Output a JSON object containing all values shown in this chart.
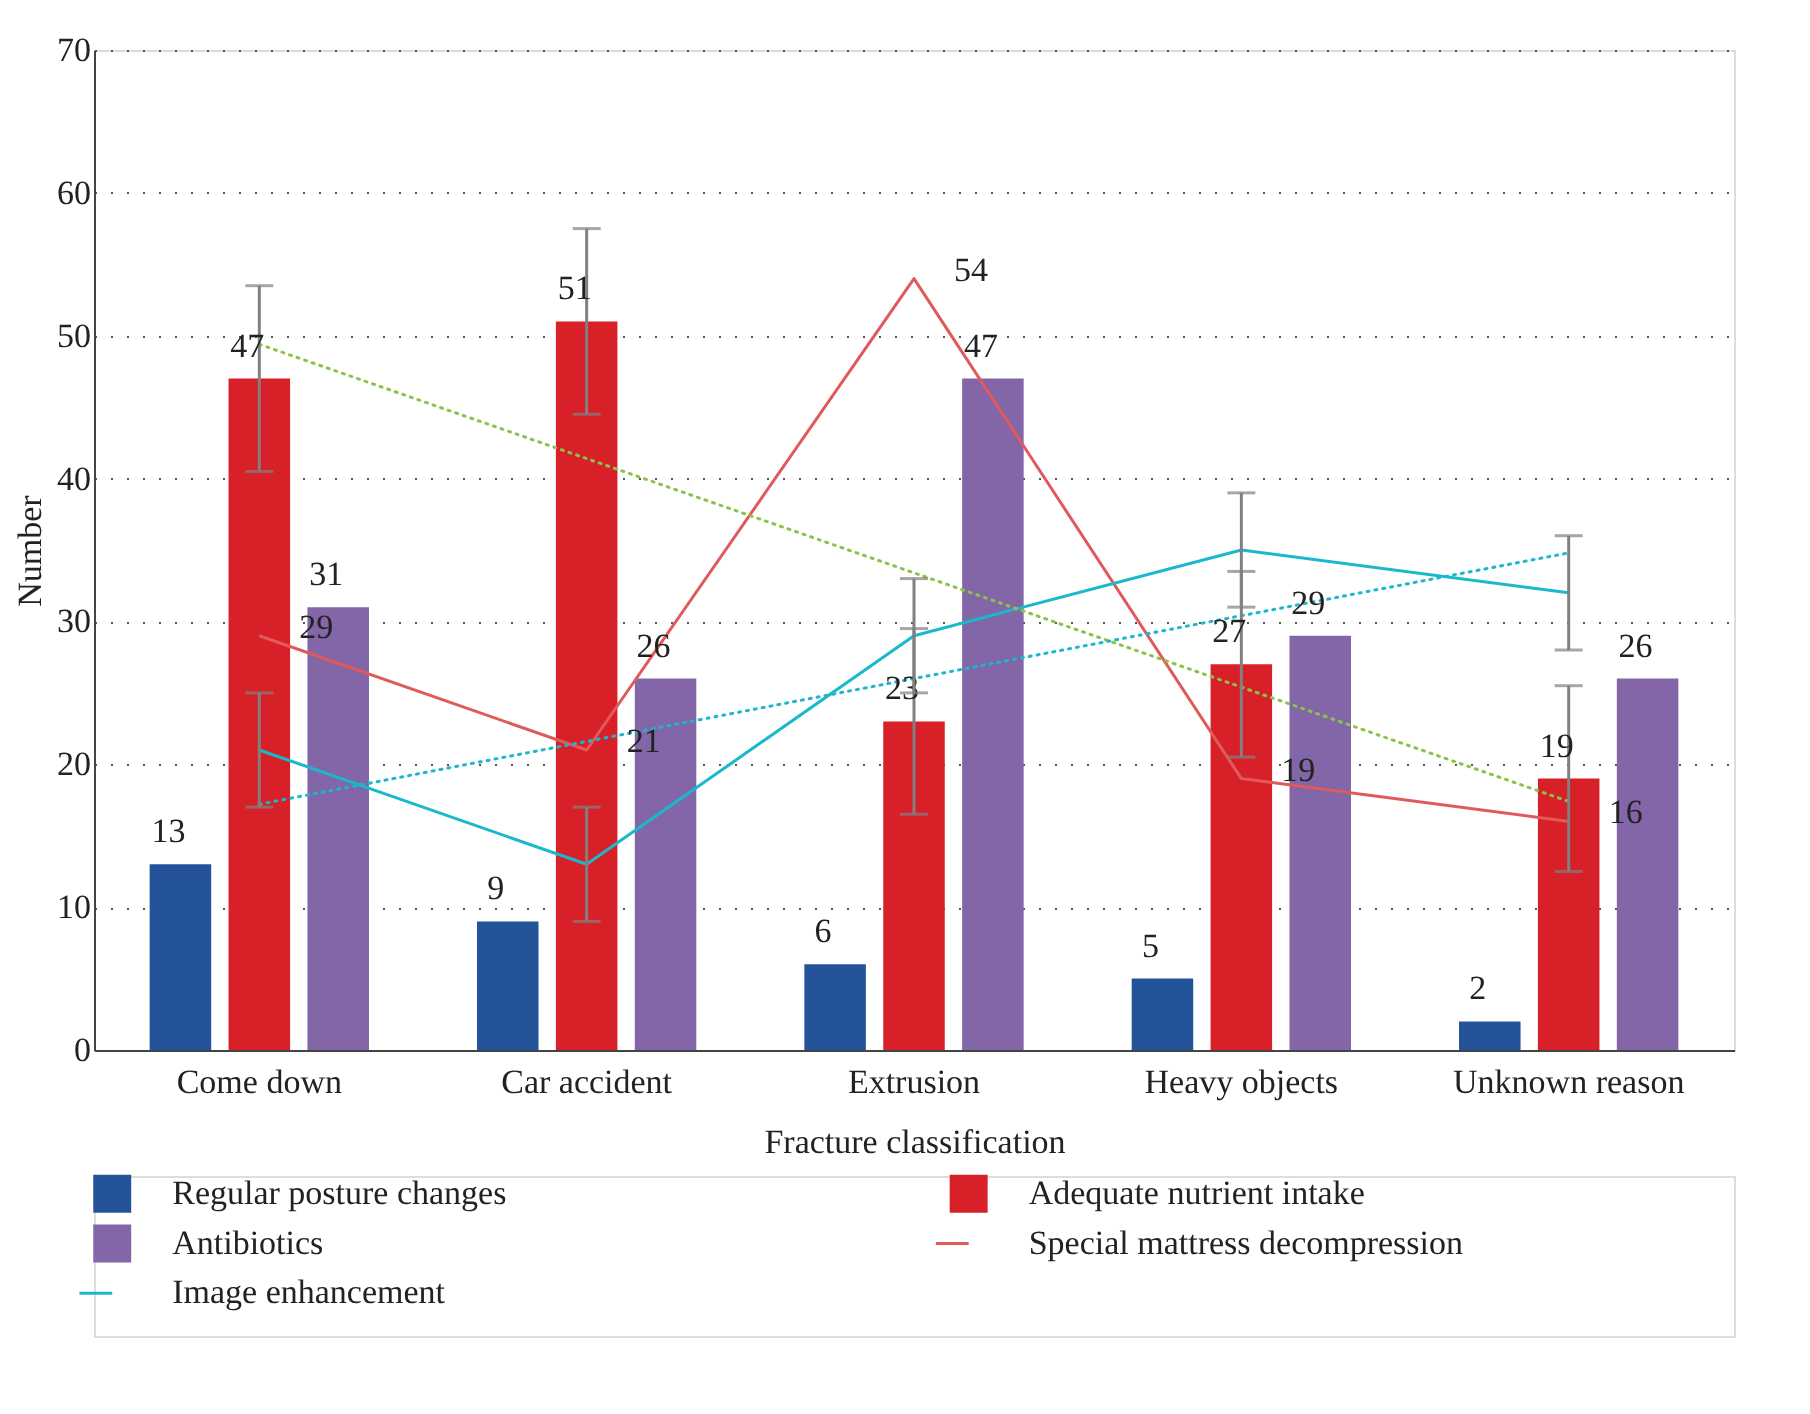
{
  "chart_data": {
    "type": "bar",
    "xlabel": "Fracture classification",
    "ylabel": "Number",
    "categories": [
      "Come down",
      "Car accident",
      "Extrusion",
      "Heavy objects",
      "Unknown reason"
    ],
    "ylim": [
      0,
      70
    ],
    "yticks": [
      0,
      10,
      20,
      30,
      40,
      50,
      60,
      70
    ],
    "grid": "y",
    "legend": "bottom",
    "series": [
      {
        "name": "Regular posture changes",
        "color": "#25539a",
        "values": [
          13,
          9,
          6,
          5,
          2
        ],
        "value_labels": [
          "13",
          "9",
          "6",
          "5",
          "2"
        ]
      },
      {
        "name": "Adequate nutrient intake",
        "color": "#d82028",
        "values": [
          47,
          51,
          23,
          27,
          19
        ],
        "errors": [
          6.5,
          6.5,
          6.5,
          6.5,
          6.5
        ],
        "value_labels": [
          "47",
          "51",
          "23",
          "27",
          "19"
        ]
      },
      {
        "name": "Antibiotics",
        "color": "#8366a8",
        "values": [
          31,
          26,
          47,
          29,
          26
        ],
        "value_labels": [
          "31",
          "26",
          "47",
          "29",
          "26"
        ]
      },
      {
        "name": "Special mattress decompression",
        "type": "line",
        "color": "#e05a5a",
        "values": [
          29,
          21,
          54,
          19,
          16
        ],
        "value_labels": [
          "29",
          "21",
          "54",
          "19",
          "16"
        ]
      },
      {
        "name": "Image enhancement",
        "type": "line",
        "color": "#1ab8cc",
        "values": [
          21,
          13,
          29,
          35,
          32
        ],
        "errors": [
          4,
          4,
          4,
          4,
          4
        ]
      },
      {
        "type": "line",
        "line_style": "dotted",
        "color": "#8bc34a",
        "values": [
          49.4,
          41.4,
          33.4,
          25.4,
          17.4
        ]
      },
      {
        "type": "line",
        "line_style": "dotted",
        "color": "#1ab8cc",
        "values": [
          17.2,
          21.6,
          26,
          30.4,
          34.8
        ]
      }
    ]
  }
}
